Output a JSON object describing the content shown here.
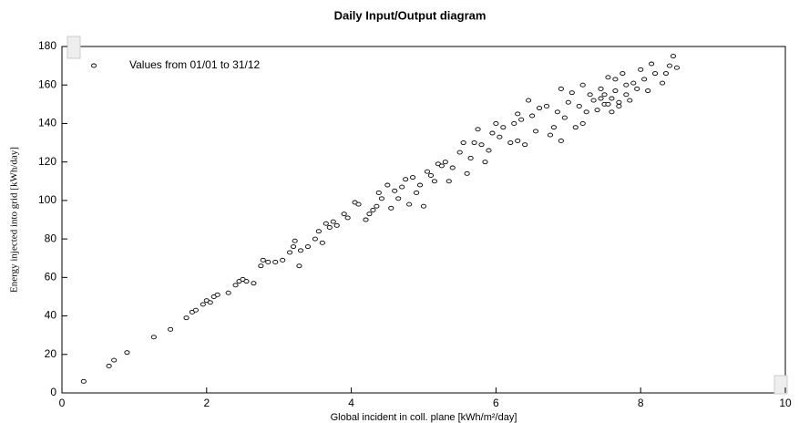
{
  "chart_data": {
    "type": "scatter",
    "title": "Daily Input/Output diagram",
    "x_label": "Global incident in coll. plane [kWh/m²/day]",
    "y_label": "Energy injected into grid [kWh/day]",
    "xlim": [
      0,
      10
    ],
    "xticks": [
      0,
      2,
      4,
      6,
      8,
      10
    ],
    "ylim": [
      0,
      180
    ],
    "yticks": [
      0,
      20,
      40,
      60,
      80,
      100,
      120,
      140,
      160,
      180
    ],
    "grid": false,
    "legend": "upper left",
    "series": [
      {
        "name": "Values from 01/01 to 31/12",
        "color": "#000000",
        "x": [
          0.3,
          0.65,
          0.72,
          0.9,
          1.27,
          1.5,
          1.72,
          1.8,
          1.85,
          1.95,
          2.0,
          2.05,
          2.1,
          2.15,
          2.3,
          2.4,
          2.45,
          2.5,
          2.55,
          2.65,
          2.75,
          2.78,
          2.85,
          2.95,
          3.05,
          3.15,
          3.2,
          3.22,
          3.28,
          3.3,
          3.4,
          3.5,
          3.55,
          3.6,
          3.65,
          3.7,
          3.75,
          3.8,
          3.9,
          3.95,
          4.05,
          4.1,
          4.2,
          4.25,
          4.3,
          4.35,
          4.38,
          4.42,
          4.5,
          4.55,
          4.6,
          4.65,
          4.7,
          4.75,
          4.8,
          4.85,
          4.9,
          4.95,
          5.0,
          5.05,
          5.1,
          5.15,
          5.2,
          5.25,
          5.3,
          5.35,
          5.4,
          5.5,
          5.55,
          5.6,
          5.65,
          5.7,
          5.75,
          5.8,
          5.85,
          5.9,
          5.95,
          6.0,
          6.05,
          6.1,
          6.2,
          6.25,
          6.3,
          6.35,
          6.4,
          6.45,
          6.5,
          6.55,
          6.6,
          6.7,
          6.75,
          6.8,
          6.85,
          6.9,
          6.95,
          7.0,
          7.05,
          7.1,
          7.15,
          7.2,
          7.25,
          7.3,
          7.35,
          7.4,
          7.45,
          7.5,
          7.55,
          7.6,
          7.65,
          7.7,
          7.75,
          7.8,
          7.85,
          7.9,
          7.95,
          8.0,
          8.05,
          8.1,
          8.15,
          8.2,
          8.3,
          8.35,
          8.4,
          8.45,
          8.5,
          7.6,
          7.7,
          7.8,
          7.65,
          6.3,
          6.9,
          7.2,
          7.5,
          7.55,
          7.45
        ],
        "values": [
          6,
          14,
          17,
          21,
          29,
          33,
          39,
          42,
          43,
          46,
          48,
          47,
          50,
          51,
          52,
          56,
          58,
          59,
          58,
          57,
          66,
          69,
          68,
          68,
          69,
          73,
          76,
          79,
          66,
          74,
          76,
          80,
          84,
          78,
          88,
          86,
          89,
          87,
          93,
          91,
          99,
          98,
          90,
          93,
          95,
          97,
          104,
          101,
          108,
          96,
          105,
          101,
          107,
          111,
          98,
          112,
          104,
          108,
          97,
          115,
          113,
          110,
          119,
          118,
          120,
          110,
          117,
          125,
          130,
          114,
          122,
          130,
          137,
          129,
          120,
          126,
          135,
          140,
          133,
          138,
          130,
          140,
          145,
          142,
          129,
          152,
          144,
          136,
          148,
          149,
          134,
          138,
          146,
          158,
          143,
          151,
          156,
          138,
          149,
          160,
          146,
          155,
          152,
          147,
          158,
          150,
          164,
          153,
          157,
          149,
          166,
          155,
          152,
          161,
          158,
          168,
          163,
          157,
          171,
          166,
          161,
          166,
          170,
          175,
          169,
          146,
          151,
          160,
          163,
          131,
          131,
          140,
          155,
          150,
          153
        ]
      }
    ]
  }
}
